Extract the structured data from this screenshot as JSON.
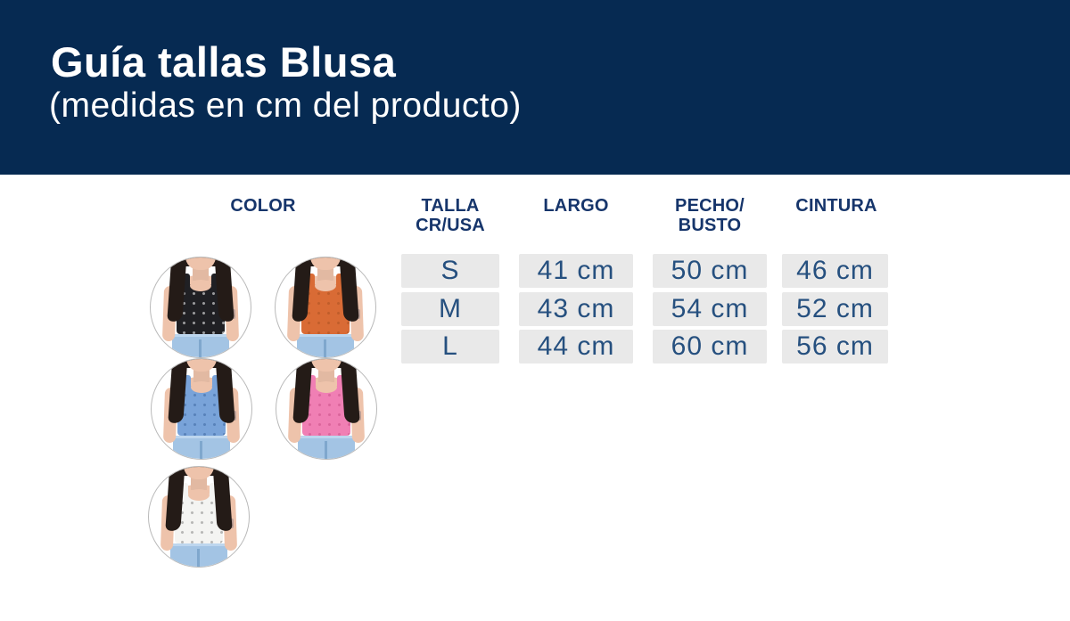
{
  "header": {
    "title": "Guía tallas Blusa",
    "subtitle": "(medidas en cm del producto)"
  },
  "table": {
    "color_header": "COLOR",
    "columns": [
      {
        "line1": "TALLA",
        "line2": "CR/USA"
      },
      {
        "line1": "LARGO",
        "line2": ""
      },
      {
        "line1": "PECHO/",
        "line2": "BUSTO"
      },
      {
        "line1": "CINTURA",
        "line2": ""
      }
    ],
    "rows": [
      {
        "talla": "S",
        "largo": "41 cm",
        "pecho": "50 cm",
        "cintura": "46 cm"
      },
      {
        "talla": "M",
        "largo": "43 cm",
        "pecho": "54 cm",
        "cintura": "52 cm"
      },
      {
        "talla": "L",
        "largo": "44 cm",
        "pecho": "60 cm",
        "cintura": "56 cm"
      }
    ]
  },
  "photos": [
    {
      "name": "model-photo-black-top",
      "garment_hex": "#202024",
      "dot_rgba": "rgba(255,255,255,0.55)"
    },
    {
      "name": "model-photo-orange-top",
      "garment_hex": "#d96b35",
      "dot_rgba": "rgba(80,30,0,0.18)"
    },
    {
      "name": "model-photo-blue-top",
      "garment_hex": "#79a3d9",
      "dot_rgba": "rgba(25,70,130,0.35)"
    },
    {
      "name": "model-photo-pink-top",
      "garment_hex": "#f07fb4",
      "dot_rgba": "rgba(170,40,100,0.30)"
    },
    {
      "name": "model-photo-white-top",
      "garment_hex": "#f4f4f2",
      "dot_rgba": "rgba(110,110,110,0.45)"
    }
  ],
  "colors": {
    "banner": "#062a52",
    "banner-text": "#ffffff",
    "header-text": "#16356b",
    "cell-text": "#26507f",
    "cell-bg": "#e9e9e9",
    "circle-border": "#b9b9b9",
    "skin": "#eec3ab",
    "hair": "#241b17",
    "jeans": "#a3c4e4"
  },
  "chart_data": {
    "type": "table",
    "title": "Guía tallas Blusa (medidas en cm del producto)",
    "columns": [
      "TALLA CR/USA",
      "LARGO",
      "PECHO/BUSTO",
      "CINTURA"
    ],
    "rows": [
      [
        "S",
        "41 cm",
        "50 cm",
        "46 cm"
      ],
      [
        "M",
        "43 cm",
        "54 cm",
        "52 cm"
      ],
      [
        "L",
        "44 cm",
        "60 cm",
        "56 cm"
      ]
    ],
    "color_swatches": [
      "#202024",
      "#d96b35",
      "#79a3d9",
      "#f07fb4",
      "#f4f4f2"
    ]
  }
}
